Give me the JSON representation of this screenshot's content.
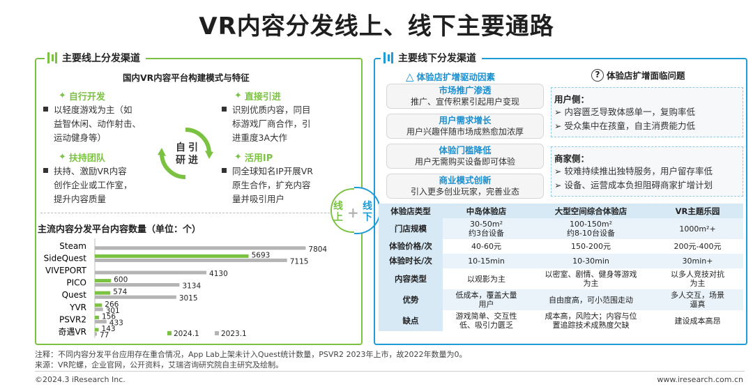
{
  "title": "VR内容分发线上、线下主要通路",
  "online": {
    "header": "主要线上分发渠道",
    "subtitle": "国内VR内容平台构建模式与特征",
    "self_dev": {
      "label": "自行开发",
      "text": [
        "以轻度游戏为主（如",
        "益智休闲、动作射击、",
        "运动健身等）"
      ]
    },
    "direct": {
      "label": "直接引进",
      "text": [
        "识别优质内容，同目",
        "标游戏厂商合作，引",
        "进重度3A大作"
      ]
    },
    "support": {
      "label": "扶持团队",
      "text": [
        "扶持、激励VR内容",
        "创作企业或工作室，",
        "提升内容质量"
      ]
    },
    "ip": {
      "label": "活用IP",
      "text": [
        "同全球知名IP开展VR",
        "原生合作，扩充内容",
        "量并吸引用户"
      ]
    },
    "cycle": [
      "自",
      "引",
      "研",
      "进"
    ],
    "chart_title": "主流内容分发平台内容数量（单位：个）"
  },
  "badge": {
    "left": [
      "线",
      "上"
    ],
    "right": [
      "线",
      "下"
    ]
  },
  "offline": {
    "header": "主要线下分发渠道",
    "drivers_title": "体验店扩增驱动因素",
    "problems_title": "体验店扩增面临问题",
    "drivers": [
      {
        "h": "市场推广渗透",
        "b": "推广、宣传积累引起用户变现"
      },
      {
        "h": "用户需求增长",
        "b": "用户兴趣伴随市场成熟愈加浓厚"
      },
      {
        "h": "体验门槛降低",
        "b": "用户无需购买设备即可体验"
      },
      {
        "h": "商业模式创新",
        "b": "引入更多创业玩家，完善业态"
      }
    ],
    "user_side": {
      "h": "用户侧：",
      "l": [
        "内容匮乏导致体感单一，复购率低",
        "受众集中在孩童，自主消费能力低"
      ]
    },
    "biz_side": {
      "h": "商家侧：",
      "l": [
        "较难持续推出独特服务，用户留存率低",
        "设备、运营成本负担阻碍商家扩增计划"
      ]
    },
    "table": {
      "headers": [
        "体验店类型",
        "中岛体验店",
        "大型空间综合体验店",
        "VR主题乐园"
      ],
      "rows": [
        [
          "门店规模",
          "30-50m²\n约3台设备",
          "100-150m²\n约8-10台设备",
          "1000m²+"
        ],
        [
          "体验价格/次",
          "40-60元",
          "150-200元",
          "200元-400元"
        ],
        [
          "体验时长/次",
          "10-15min",
          "10-30min",
          "30min+"
        ],
        [
          "内容类型",
          "以观影为主",
          "以密室、剧情、健身等游戏\n为主",
          "以多人竞技对抗\n为主"
        ],
        [
          "优势",
          "低成本，覆盖大量\n用户",
          "自由度高，可小范围走动",
          "多人交互，场景\n逼真"
        ],
        [
          "缺点",
          "游戏简单、交互性\n低、吸引力匮乏",
          "成本高，风险大；内容与位\n置追踪技术成熟度欠缺",
          "建设成本高昂"
        ]
      ]
    }
  },
  "chart_data": {
    "type": "bar",
    "title": "主流内容分发平台内容数量（单位：个）",
    "categories": [
      "Steam",
      "SideQuest",
      "VIVEPORT",
      "PICO",
      "Quest",
      "YVR",
      "PSVR2",
      "奇遇VR"
    ],
    "series": [
      {
        "name": "2024.1",
        "color": "#7cc242",
        "values": [
          null,
          5693,
          null,
          600,
          574,
          266,
          156,
          143
        ]
      },
      {
        "name": "2023.1",
        "color": "#b4b4b4",
        "values": [
          7804,
          7115,
          4130,
          3134,
          3015,
          301,
          433,
          77
        ]
      }
    ],
    "ylim": [
      0,
      8000
    ],
    "legend_position": "bottom-right"
  },
  "footer": {
    "note": "注释：不同内容分发平台应用存在重合情况，App Lab上架未计入Quest统计数量，PSVR2 2023年上市，故2022年数量为0。",
    "source": "来源：VR陀螺，企业官网，公开资料，艾瑞咨询研究院自主研究及绘制。",
    "copyright": "©2024.3 iResearch Inc.",
    "site": "www.iresearch.com.cn"
  },
  "colors": {
    "green": "#7cc242",
    "blue": "#1f9bd6",
    "grey": "#b4b4b4"
  }
}
